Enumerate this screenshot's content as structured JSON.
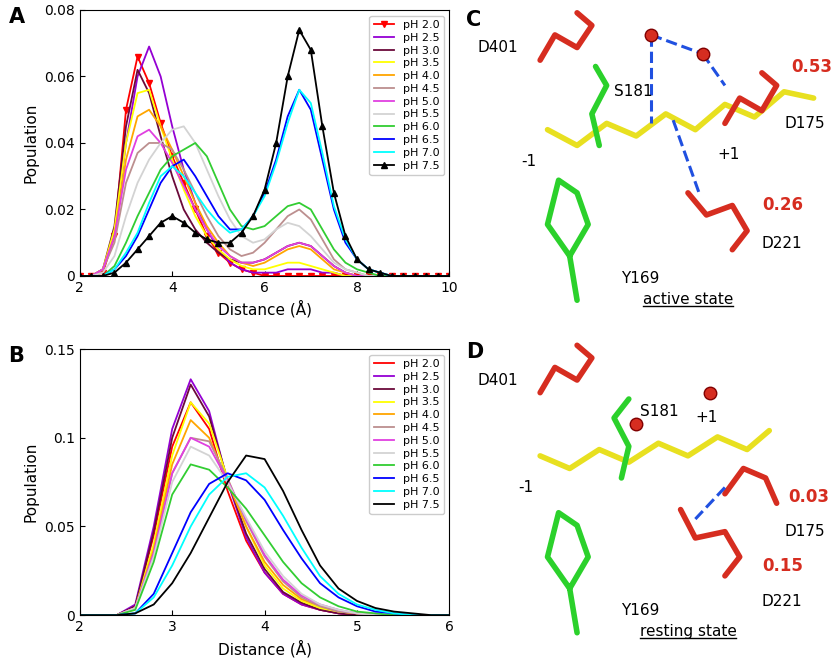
{
  "chart_data": [
    {
      "type": "line",
      "panel_label": "A",
      "x_label": "Distance (Å)",
      "y_label": "Population",
      "xlim": [
        2,
        10
      ],
      "xticks": [
        2,
        4,
        6,
        8,
        10
      ],
      "ylim": [
        0,
        0.08
      ],
      "yticks": [
        0,
        0.02,
        0.04,
        0.06,
        0.08
      ],
      "grid": false,
      "legend": "upper right",
      "x": [
        2,
        2.25,
        2.5,
        2.75,
        3,
        3.25,
        3.5,
        3.75,
        4,
        4.25,
        4.5,
        4.75,
        5,
        5.25,
        5.5,
        5.75,
        6,
        6.25,
        6.5,
        6.75,
        7,
        7.25,
        7.5,
        7.75,
        8,
        8.25,
        8.5,
        8.75,
        9,
        9.25,
        9.5,
        9.75,
        10
      ],
      "series": [
        {
          "name": "pH 2.0",
          "color": "#ff0000",
          "marker": "triangle_down",
          "values": [
            0,
            0,
            0.001,
            0.012,
            0.05,
            0.066,
            0.058,
            0.046,
            0.036,
            0.028,
            0.02,
            0.012,
            0.007,
            0.004,
            0.002,
            0.001,
            0,
            0,
            0,
            0,
            0,
            0,
            0,
            0,
            0,
            0,
            0,
            0,
            0,
            0,
            0,
            0,
            0
          ]
        },
        {
          "name": "pH 2.5",
          "color": "#9400d3",
          "values": [
            0,
            0,
            0.002,
            0.012,
            0.04,
            0.06,
            0.069,
            0.06,
            0.045,
            0.032,
            0.022,
            0.014,
            0.008,
            0.004,
            0.002,
            0.001,
            0.001,
            0.001,
            0.002,
            0.002,
            0.002,
            0.001,
            0.001,
            0,
            0,
            0,
            0,
            0,
            0,
            0,
            0,
            0,
            0
          ]
        },
        {
          "name": "pH 3.0",
          "color": "#6b0a3a",
          "values": [
            0,
            0,
            0.002,
            0.015,
            0.045,
            0.062,
            0.055,
            0.042,
            0.03,
            0.02,
            0.014,
            0.01,
            0.007,
            0.005,
            0.004,
            0.004,
            0.005,
            0.007,
            0.009,
            0.01,
            0.009,
            0.006,
            0.003,
            0.001,
            0,
            0,
            0,
            0,
            0,
            0,
            0,
            0,
            0
          ]
        },
        {
          "name": "pH 3.5",
          "color": "#ffff00",
          "values": [
            0,
            0,
            0.002,
            0.014,
            0.04,
            0.055,
            0.056,
            0.045,
            0.035,
            0.026,
            0.018,
            0.012,
            0.008,
            0.005,
            0.003,
            0.002,
            0.002,
            0.003,
            0.004,
            0.004,
            0.003,
            0.002,
            0.001,
            0,
            0,
            0,
            0,
            0,
            0,
            0,
            0,
            0,
            0
          ]
        },
        {
          "name": "pH 4.0",
          "color": "#ffa500",
          "values": [
            0,
            0,
            0.002,
            0.012,
            0.035,
            0.048,
            0.05,
            0.045,
            0.038,
            0.03,
            0.022,
            0.015,
            0.01,
            0.006,
            0.004,
            0.003,
            0.004,
            0.006,
            0.008,
            0.009,
            0.008,
            0.005,
            0.002,
            0.001,
            0,
            0,
            0,
            0,
            0,
            0,
            0,
            0,
            0
          ]
        },
        {
          "name": "pH 4.5",
          "color": "#bc8f8f",
          "values": [
            0,
            0,
            0.002,
            0.01,
            0.028,
            0.037,
            0.04,
            0.04,
            0.038,
            0.032,
            0.025,
            0.018,
            0.012,
            0.008,
            0.006,
            0.007,
            0.01,
            0.014,
            0.018,
            0.02,
            0.017,
            0.011,
            0.005,
            0.002,
            0.001,
            0,
            0,
            0,
            0,
            0,
            0,
            0,
            0
          ]
        },
        {
          "name": "pH 5.0",
          "color": "#e040e0",
          "values": [
            0,
            0,
            0.002,
            0.012,
            0.032,
            0.042,
            0.044,
            0.04,
            0.034,
            0.027,
            0.02,
            0.014,
            0.009,
            0.006,
            0.004,
            0.004,
            0.005,
            0.007,
            0.009,
            0.01,
            0.009,
            0.006,
            0.003,
            0.001,
            0,
            0,
            0,
            0,
            0,
            0,
            0,
            0,
            0
          ]
        },
        {
          "name": "pH 5.5",
          "color": "#d3d3d3",
          "values": [
            0,
            0,
            0.001,
            0.006,
            0.018,
            0.028,
            0.035,
            0.04,
            0.044,
            0.045,
            0.04,
            0.032,
            0.024,
            0.017,
            0.012,
            0.01,
            0.011,
            0.014,
            0.016,
            0.015,
            0.012,
            0.008,
            0.004,
            0.002,
            0.001,
            0,
            0,
            0,
            0,
            0,
            0,
            0,
            0
          ]
        },
        {
          "name": "pH 6.0",
          "color": "#32cd32",
          "values": [
            0,
            0,
            0,
            0.003,
            0.01,
            0.018,
            0.025,
            0.032,
            0.036,
            0.038,
            0.04,
            0.036,
            0.028,
            0.02,
            0.015,
            0.014,
            0.015,
            0.018,
            0.021,
            0.022,
            0.02,
            0.014,
            0.008,
            0.004,
            0.002,
            0.001,
            0,
            0,
            0,
            0,
            0,
            0,
            0
          ]
        },
        {
          "name": "pH 6.5",
          "color": "#0000ff",
          "values": [
            0,
            0,
            0,
            0.002,
            0.006,
            0.012,
            0.02,
            0.028,
            0.033,
            0.035,
            0.03,
            0.024,
            0.018,
            0.014,
            0.014,
            0.018,
            0.025,
            0.035,
            0.048,
            0.056,
            0.05,
            0.035,
            0.02,
            0.01,
            0.005,
            0.002,
            0.001,
            0,
            0,
            0,
            0,
            0,
            0
          ]
        },
        {
          "name": "pH 7.0",
          "color": "#00ffff",
          "values": [
            0,
            0,
            0,
            0.002,
            0.007,
            0.013,
            0.022,
            0.03,
            0.033,
            0.03,
            0.025,
            0.02,
            0.016,
            0.013,
            0.014,
            0.018,
            0.024,
            0.034,
            0.046,
            0.056,
            0.052,
            0.037,
            0.021,
            0.011,
            0.005,
            0.002,
            0.001,
            0,
            0,
            0,
            0,
            0,
            0
          ]
        },
        {
          "name": "pH 7.5",
          "color": "#000000",
          "marker": "triangle_up",
          "values": [
            0,
            0,
            0,
            0.001,
            0.004,
            0.008,
            0.012,
            0.016,
            0.018,
            0.016,
            0.013,
            0.011,
            0.01,
            0.01,
            0.013,
            0.018,
            0.026,
            0.04,
            0.06,
            0.074,
            0.068,
            0.045,
            0.025,
            0.012,
            0.005,
            0.002,
            0.001,
            0,
            0,
            0,
            0,
            0,
            0
          ]
        }
      ]
    },
    {
      "type": "line",
      "panel_label": "B",
      "x_label": "Distance (Å)",
      "y_label": "Population",
      "xlim": [
        2,
        6
      ],
      "xticks": [
        2,
        3,
        4,
        5,
        6
      ],
      "ylim": [
        0,
        0.15
      ],
      "yticks": [
        0,
        0.05,
        0.1,
        0.15
      ],
      "grid": false,
      "legend": "upper right",
      "x": [
        2,
        2.2,
        2.4,
        2.6,
        2.8,
        3,
        3.2,
        3.4,
        3.6,
        3.8,
        4,
        4.2,
        4.4,
        4.6,
        4.8,
        5,
        5.2,
        5.4,
        5.6,
        5.8,
        6
      ],
      "series": [
        {
          "name": "pH 2.0",
          "color": "#ff0000",
          "values": [
            0,
            0,
            0,
            0.005,
            0.045,
            0.095,
            0.12,
            0.105,
            0.07,
            0.042,
            0.024,
            0.012,
            0.006,
            0.003,
            0.001,
            0,
            0,
            0,
            0,
            0,
            0
          ]
        },
        {
          "name": "pH 2.5",
          "color": "#9400d3",
          "values": [
            0,
            0,
            0,
            0.006,
            0.05,
            0.105,
            0.133,
            0.115,
            0.075,
            0.044,
            0.024,
            0.012,
            0.006,
            0.003,
            0.001,
            0,
            0,
            0,
            0,
            0,
            0
          ]
        },
        {
          "name": "pH 3.0",
          "color": "#6b0a3a",
          "values": [
            0,
            0,
            0,
            0.005,
            0.047,
            0.1,
            0.13,
            0.112,
            0.076,
            0.046,
            0.026,
            0.013,
            0.007,
            0.003,
            0.001,
            0,
            0,
            0,
            0,
            0,
            0
          ]
        },
        {
          "name": "pH 3.5",
          "color": "#ffff00",
          "values": [
            0,
            0,
            0,
            0.004,
            0.04,
            0.09,
            0.12,
            0.108,
            0.077,
            0.05,
            0.028,
            0.015,
            0.008,
            0.004,
            0.002,
            0.001,
            0,
            0,
            0,
            0,
            0
          ]
        },
        {
          "name": "pH 4.0",
          "color": "#ffa500",
          "values": [
            0,
            0,
            0,
            0.004,
            0.037,
            0.085,
            0.11,
            0.1,
            0.075,
            0.05,
            0.03,
            0.017,
            0.009,
            0.005,
            0.002,
            0.001,
            0,
            0,
            0,
            0,
            0
          ]
        },
        {
          "name": "pH 4.5",
          "color": "#bc8f8f",
          "values": [
            0,
            0,
            0,
            0.004,
            0.035,
            0.08,
            0.1,
            0.098,
            0.077,
            0.053,
            0.033,
            0.019,
            0.01,
            0.005,
            0.002,
            0.001,
            0,
            0,
            0,
            0,
            0
          ]
        },
        {
          "name": "pH 5.0",
          "color": "#e040e0",
          "values": [
            0,
            0,
            0,
            0.004,
            0.035,
            0.08,
            0.1,
            0.095,
            0.076,
            0.054,
            0.034,
            0.02,
            0.011,
            0.006,
            0.003,
            0.001,
            0,
            0,
            0,
            0,
            0
          ]
        },
        {
          "name": "pH 5.5",
          "color": "#d3d3d3",
          "values": [
            0,
            0,
            0,
            0.004,
            0.033,
            0.075,
            0.095,
            0.09,
            0.075,
            0.055,
            0.036,
            0.022,
            0.012,
            0.006,
            0.003,
            0.001,
            0,
            0,
            0,
            0,
            0
          ]
        },
        {
          "name": "pH 6.0",
          "color": "#32cd32",
          "values": [
            0,
            0,
            0,
            0.003,
            0.03,
            0.068,
            0.085,
            0.082,
            0.072,
            0.06,
            0.045,
            0.03,
            0.018,
            0.01,
            0.005,
            0.002,
            0.001,
            0,
            0,
            0,
            0
          ]
        },
        {
          "name": "pH 6.5",
          "color": "#0000ff",
          "values": [
            0,
            0,
            0,
            0.001,
            0.012,
            0.035,
            0.058,
            0.074,
            0.08,
            0.076,
            0.065,
            0.048,
            0.032,
            0.018,
            0.01,
            0.005,
            0.002,
            0.001,
            0,
            0,
            0
          ]
        },
        {
          "name": "pH 7.0",
          "color": "#00ffff",
          "values": [
            0,
            0,
            0,
            0.001,
            0.01,
            0.028,
            0.05,
            0.068,
            0.078,
            0.08,
            0.072,
            0.056,
            0.038,
            0.022,
            0.012,
            0.006,
            0.003,
            0.001,
            0,
            0,
            0
          ]
        },
        {
          "name": "pH 7.5",
          "color": "#000000",
          "values": [
            0,
            0,
            0,
            0.001,
            0.006,
            0.018,
            0.035,
            0.055,
            0.075,
            0.09,
            0.088,
            0.07,
            0.048,
            0.028,
            0.015,
            0.008,
            0.004,
            0.002,
            0.001,
            0,
            0
          ]
        }
      ]
    }
  ],
  "panels": [
    {
      "panel_label": "C",
      "caption": "active state",
      "residues": [
        "D401",
        "S181",
        "Y169"
      ],
      "subsites": [
        "-1",
        "+1"
      ],
      "acids": [
        {
          "name": "D175",
          "value": 0.53
        },
        {
          "name": "D221",
          "value": 0.26
        }
      ]
    },
    {
      "panel_label": "D",
      "caption": "resting state",
      "residues": [
        "D401",
        "S181",
        "Y169"
      ],
      "subsites": [
        "-1",
        "+1"
      ],
      "acids": [
        {
          "name": "D175",
          "value": 0.03
        },
        {
          "name": "D221",
          "value": 0.15
        }
      ]
    }
  ]
}
